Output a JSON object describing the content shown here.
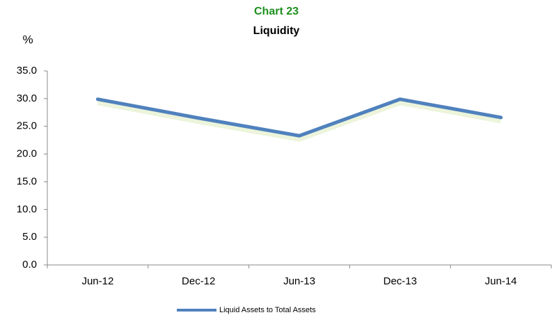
{
  "chart_data": {
    "type": "line",
    "title": "Chart 23",
    "subtitle": "Liquidity",
    "y_label": "%",
    "categories": [
      "Jun-12",
      "Dec-12",
      "Jun-13",
      "Dec-13",
      "Jun-14"
    ],
    "series": [
      {
        "name": "Liquid Assets to Total Assets",
        "color": "#4f81bd",
        "values": [
          29.9,
          26.5,
          23.3,
          29.9,
          26.6
        ]
      }
    ],
    "ylim": [
      0,
      35
    ],
    "yticks": [
      {
        "value": 0,
        "label": "0.0"
      },
      {
        "value": 5,
        "label": "5.0"
      },
      {
        "value": 10,
        "label": "10.0"
      },
      {
        "value": 15,
        "label": "15.0"
      },
      {
        "value": 20,
        "label": "20.0"
      },
      {
        "value": 25,
        "label": "25.0"
      },
      {
        "value": 30,
        "label": "30.0"
      },
      {
        "value": 35,
        "label": "35.0"
      }
    ],
    "grid": false,
    "legend": "bottom"
  }
}
